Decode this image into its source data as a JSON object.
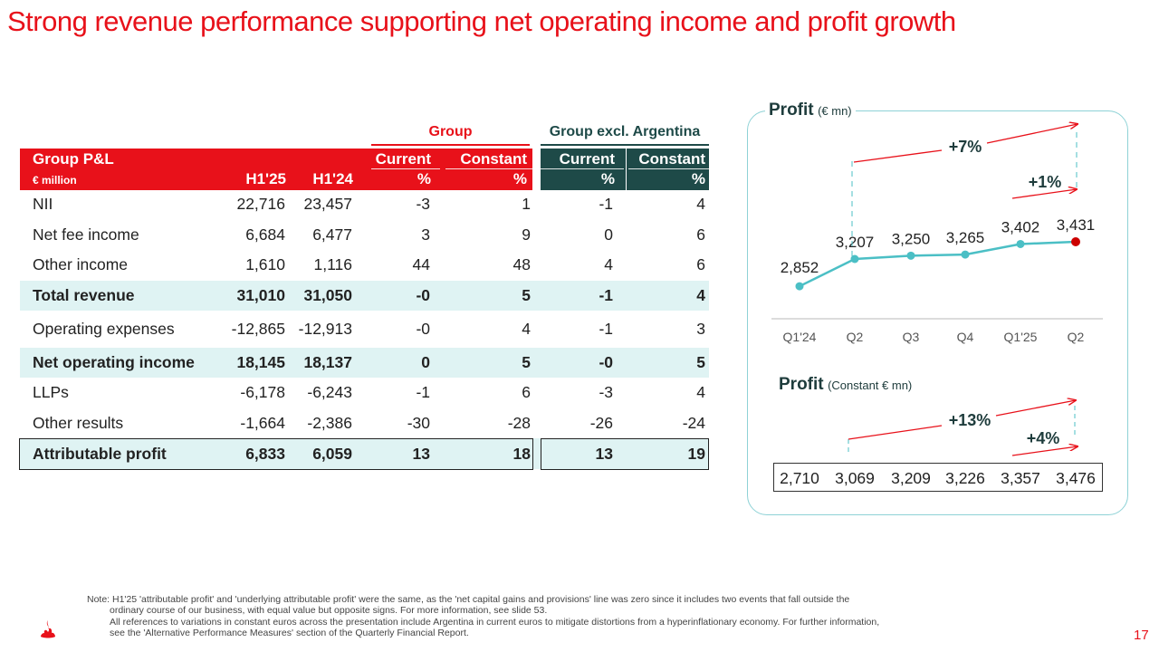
{
  "title": "Strong revenue performance supporting net operating income and profit growth",
  "table": {
    "group_header": "Group",
    "group_excl_header": "Group excl. Argentina",
    "header_label": "Group P&L",
    "header_unit": "€ million",
    "col_h125": "H1'25",
    "col_h124": "H1'24",
    "col_current": "Current",
    "col_constant": "Constant",
    "col_pct": "%",
    "rows": [
      {
        "label": "NII",
        "h125": "22,716",
        "h124": "23,457",
        "g_cur": "-3",
        "g_con": "1",
        "x_cur": "-1",
        "x_con": "4"
      },
      {
        "label": "Net fee income",
        "h125": "6,684",
        "h124": "6,477",
        "g_cur": "3",
        "g_con": "9",
        "x_cur": "0",
        "x_con": "6"
      },
      {
        "label": "Other income",
        "h125": "1,610",
        "h124": "1,116",
        "g_cur": "44",
        "g_con": "48",
        "x_cur": "4",
        "x_con": "6"
      },
      {
        "label": "Total revenue",
        "h125": "31,010",
        "h124": "31,050",
        "g_cur": "-0",
        "g_con": "5",
        "x_cur": "-1",
        "x_con": "4"
      },
      {
        "label": "Operating expenses",
        "h125": "-12,865",
        "h124": "-12,913",
        "g_cur": "-0",
        "g_con": "4",
        "x_cur": "-1",
        "x_con": "3"
      },
      {
        "label": "Net operating income",
        "h125": "18,145",
        "h124": "18,137",
        "g_cur": "0",
        "g_con": "5",
        "x_cur": "-0",
        "x_con": "5"
      },
      {
        "label": "LLPs",
        "h125": "-6,178",
        "h124": "-6,243",
        "g_cur": "-1",
        "g_con": "6",
        "x_cur": "-3",
        "x_con": "4"
      },
      {
        "label": "Other results",
        "h125": "-1,664",
        "h124": "-2,386",
        "g_cur": "-30",
        "g_con": "-28",
        "x_cur": "-26",
        "x_con": "-24"
      },
      {
        "label": "Attributable profit",
        "h125": "6,833",
        "h124": "6,059",
        "g_cur": "13",
        "g_con": "18",
        "x_cur": "13",
        "x_con": "19"
      }
    ]
  },
  "profit_card": {
    "title": "Profit",
    "title_unit": "(€ mn)",
    "growth_big": "+7%",
    "growth_small": "+1%",
    "constant_title": "Profit",
    "constant_unit": "(Constant € mn)",
    "constant_growth_big": "+13%",
    "constant_growth_small": "+4%",
    "constant_values": [
      "2,710",
      "3,069",
      "3,209",
      "3,226",
      "3,357",
      "3,476"
    ]
  },
  "chart_data": {
    "type": "line",
    "categories": [
      "Q1'24",
      "Q2",
      "Q3",
      "Q4",
      "Q1'25",
      "Q2"
    ],
    "values": [
      2852,
      3207,
      3250,
      3265,
      3402,
      3431
    ],
    "value_labels": [
      "2,852",
      "3,207",
      "3,250",
      "3,265",
      "3,402",
      "3,431"
    ],
    "line_color": "#4bbfc5",
    "last_point_color": "#cc0000",
    "ylim": [
      2700,
      3600
    ],
    "grid": false
  },
  "footer": {
    "note_line1": "Note: H1'25 'attributable profit' and 'underlying attributable profit' were the same, as the 'net capital gains and provisions' line was zero since it includes two events that fall outside the",
    "note_line2": "ordinary course of our business, with equal value but opposite signs. For more information, see slide 53.",
    "note_line3": "All references to variations in constant euros across the presentation include Argentina in current euros to mitigate distortions from a hyperinflationary economy. For further information,",
    "note_line4": "see the 'Alternative Performance Measures' section of the Quarterly Financial Report.",
    "page_number": "17"
  },
  "colors": {
    "brand_red": "#e8111a",
    "dark_teal": "#1e4a48",
    "band_teal": "#dff3f3",
    "card_border": "#8ed2d6"
  },
  "icons": {
    "logo": "santander-flame-logo"
  }
}
